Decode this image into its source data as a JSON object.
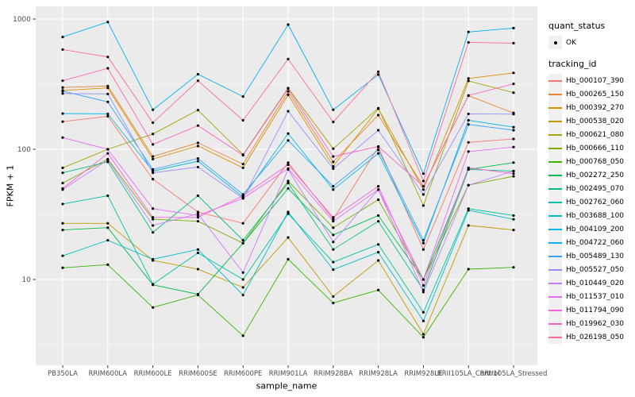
{
  "figure": {
    "panel_bg": "#EBEBEB",
    "grid_color": "#FFFFFF",
    "tick_color": "#333333",
    "axis_text_color": "#4D4D4D",
    "point_color": "#000000"
  },
  "legend": {
    "quant_title": "quant_status",
    "quant_items": [
      {
        "label": "OK"
      }
    ],
    "tracking_title": "tracking_id"
  },
  "chart_data": {
    "type": "line",
    "title": "",
    "xlabel": "sample_name",
    "ylabel": "FPKM + 1",
    "y_scale": "log10",
    "y_ticks": [
      1000,
      100,
      10
    ],
    "y_minor": [
      316.2,
      31.62,
      3.162
    ],
    "ylim": [
      2.2,
      1250
    ],
    "grid": true,
    "legend_position": "right",
    "categories": [
      "PB350LA",
      "RRIM600LA",
      "RRIM600LE",
      "RRIM600SE",
      "RRIM600PE",
      "RRIM901LA",
      "RRIM928BA",
      "RRIM928LA",
      "RRIM928LE",
      "RRII105LA_Control",
      "RRII105LA_Stressed"
    ],
    "series": [
      {
        "name": "Hb_000107_390",
        "color": "#F8766D",
        "quant_status": "OK",
        "values": [
          163,
          179,
          59,
          33,
          27,
          79,
          29,
          104,
          17,
          113,
          120
        ]
      },
      {
        "name": "Hb_000265_150",
        "color": "#EA8331",
        "quant_status": "OK",
        "values": [
          298,
          306,
          88,
          112,
          77,
          278,
          80,
          183,
          52,
          258,
          190
        ]
      },
      {
        "name": "Hb_000392_270",
        "color": "#D89000",
        "quant_status": "OK",
        "values": [
          283,
          296,
          84,
          106,
          72,
          262,
          74,
          205,
          49,
          350,
          386
        ]
      },
      {
        "name": "Hb_000538_020",
        "color": "#C09B00",
        "quant_status": "OK",
        "values": [
          27,
          27,
          14,
          12,
          8.7,
          21,
          7.4,
          14,
          3.8,
          26,
          24
        ]
      },
      {
        "name": "Hb_000621_080",
        "color": "#A3A500",
        "quant_status": "OK",
        "values": [
          72,
          100,
          131,
          200,
          91,
          295,
          101,
          207,
          37,
          335,
          272
        ]
      },
      {
        "name": "Hb_000666_110",
        "color": "#7CAE00",
        "quant_status": "OK",
        "values": [
          55,
          84,
          29,
          28,
          19,
          57,
          25,
          41,
          10,
          53,
          62
        ]
      },
      {
        "name": "Hb_000768_050",
        "color": "#39B600",
        "quant_status": "OK",
        "values": [
          12.3,
          13,
          6.1,
          7.6,
          3.7,
          14.3,
          6.6,
          8.3,
          3.6,
          12,
          12.4
        ]
      },
      {
        "name": "Hb_002272_250",
        "color": "#00BB4E",
        "quant_status": "OK",
        "values": [
          24,
          25,
          9.1,
          7.7,
          19,
          50,
          22,
          31,
          10,
          70,
          79
        ]
      },
      {
        "name": "Hb_002495_070",
        "color": "#00BF7D",
        "quant_status": "OK",
        "values": [
          66,
          80,
          23,
          44,
          20,
          55,
          17,
          28,
          8.3,
          70,
          68
        ]
      },
      {
        "name": "Hb_002762_060",
        "color": "#00C1A3",
        "quant_status": "OK",
        "values": [
          38,
          44,
          9.2,
          16,
          10,
          32,
          13.6,
          18.6,
          5.6,
          35,
          31
        ]
      },
      {
        "name": "Hb_003688_100",
        "color": "#00BFC4",
        "quant_status": "OK",
        "values": [
          15.2,
          20,
          14.3,
          17,
          7.6,
          33,
          11.9,
          16.2,
          4.8,
          34,
          29
        ]
      },
      {
        "name": "Hb_004109_200",
        "color": "#00BAE0",
        "quant_status": "OK",
        "values": [
          188,
          187,
          68,
          81,
          43,
          132,
          49,
          93,
          19,
          167,
          148
        ]
      },
      {
        "name": "Hb_004722_060",
        "color": "#00B0F6",
        "quant_status": "OK",
        "values": [
          728,
          949,
          201,
          377,
          254,
          906,
          201,
          375,
          65,
          796,
          852
        ]
      },
      {
        "name": "Hb_005489_130",
        "color": "#35A2FF",
        "quant_status": "OK",
        "values": [
          280,
          231,
          70,
          85,
          45,
          117,
          52,
          99,
          20,
          155,
          140
        ]
      },
      {
        "name": "Hb_005527_050",
        "color": "#9590FF",
        "quant_status": "OK",
        "values": [
          268,
          266,
          66,
          73,
          42,
          196,
          71,
          140,
          45,
          187,
          186
        ]
      },
      {
        "name": "Hb_010449_020",
        "color": "#C77CFF",
        "quant_status": "OK",
        "values": [
          49,
          83,
          26,
          32,
          11.3,
          70,
          19.4,
          49,
          8,
          53,
          68
        ]
      },
      {
        "name": "Hb_011537_010",
        "color": "#E76BF3",
        "quant_status": "OK",
        "values": [
          123,
          100,
          35,
          31,
          42,
          71,
          28,
          49,
          10,
          96,
          104
        ]
      },
      {
        "name": "Hb_011794_090",
        "color": "#FA62DB",
        "quant_status": "OK",
        "values": [
          50,
          93,
          30,
          30,
          44,
          76,
          30,
          52,
          9,
          72,
          65
        ]
      },
      {
        "name": "Hb_019962_030",
        "color": "#FF62BC",
        "quant_status": "OK",
        "values": [
          336,
          419,
          109,
          152,
          90,
          292,
          88,
          105,
          52,
          259,
          318
        ]
      },
      {
        "name": "Hb_026198_050",
        "color": "#FF6A98",
        "quant_status": "OK",
        "values": [
          583,
          512,
          160,
          336,
          167,
          493,
          162,
          394,
          57,
          662,
          653
        ]
      }
    ]
  }
}
